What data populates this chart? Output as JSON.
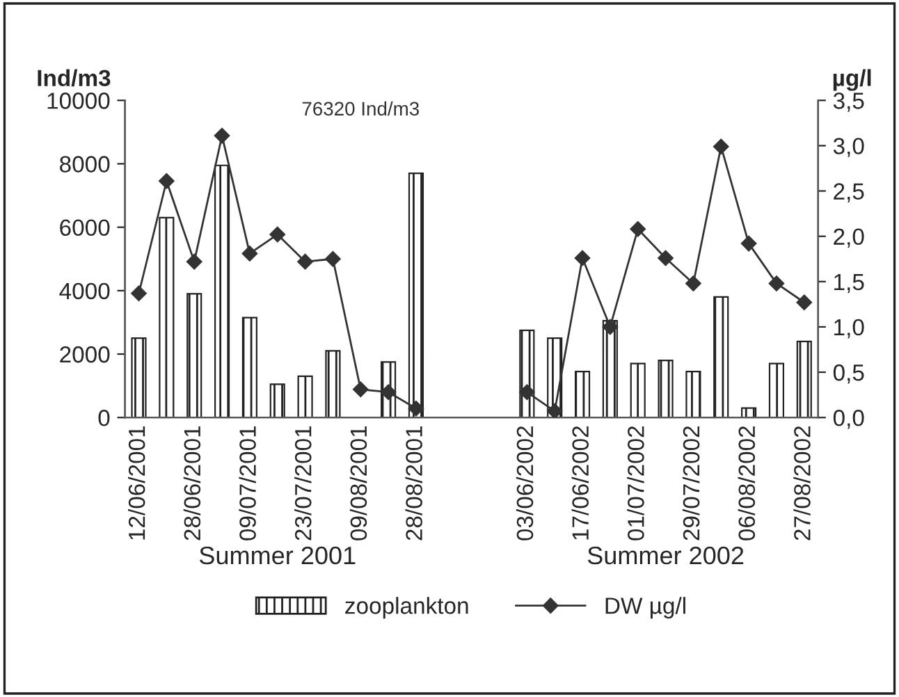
{
  "chart_data": {
    "type": "bar",
    "ylabel": "Ind/m3",
    "y2label": "µg/l",
    "categories": [
      "12/06/2001",
      null,
      "28/06/2001",
      null,
      "09/07/2001",
      null,
      "23/07/2001",
      null,
      "09/08/2001",
      null,
      "28/08/2001",
      null,
      null,
      null,
      "03/06/2002",
      null,
      "17/06/2002",
      null,
      "01/07/2002",
      null,
      "29/07/2002",
      null,
      "06/08/2002",
      null,
      "27/08/2002"
    ],
    "series": [
      {
        "name": "zooplankton",
        "color": "#222222",
        "values": [
          2500,
          6300,
          3900,
          7950,
          3150,
          1050,
          1300,
          2100,
          null,
          1750,
          7700,
          null,
          null,
          null,
          2750,
          2500,
          1450,
          3050,
          1700,
          1800,
          1450,
          3800,
          300,
          1700,
          2400
        ]
      },
      {
        "name": "DW µg/l",
        "type": "line",
        "axis": "y2",
        "color": "#333333",
        "marker": "diamond",
        "values": [
          1.37,
          2.61,
          1.72,
          3.11,
          1.81,
          2.02,
          1.72,
          1.75,
          0.31,
          0.28,
          0.1,
          null,
          null,
          null,
          0.28,
          0.07,
          1.76,
          1.0,
          2.08,
          1.76,
          1.48,
          2.99,
          1.92,
          1.48,
          1.27
        ]
      }
    ],
    "ylim": [
      0,
      10000
    ],
    "yticks": [
      0,
      2000,
      4000,
      6000,
      8000,
      10000
    ],
    "y2lim": [
      0,
      3.5
    ],
    "y2ticks": [
      {
        "value": 0,
        "label": "0,0"
      },
      {
        "value": 0.5,
        "label": "0,5"
      },
      {
        "value": 1,
        "label": "1,0"
      },
      {
        "value": 1.5,
        "label": "1,5"
      },
      {
        "value": 2,
        "label": "2,0"
      },
      {
        "value": 2.5,
        "label": "2,5"
      },
      {
        "value": 3,
        "label": "3,0"
      },
      {
        "value": 3.5,
        "label": "3,5"
      }
    ],
    "annotations": [
      "76320 Ind/m3",
      "Summer 2001",
      "Summer 2002"
    ],
    "legend": "bottom"
  }
}
